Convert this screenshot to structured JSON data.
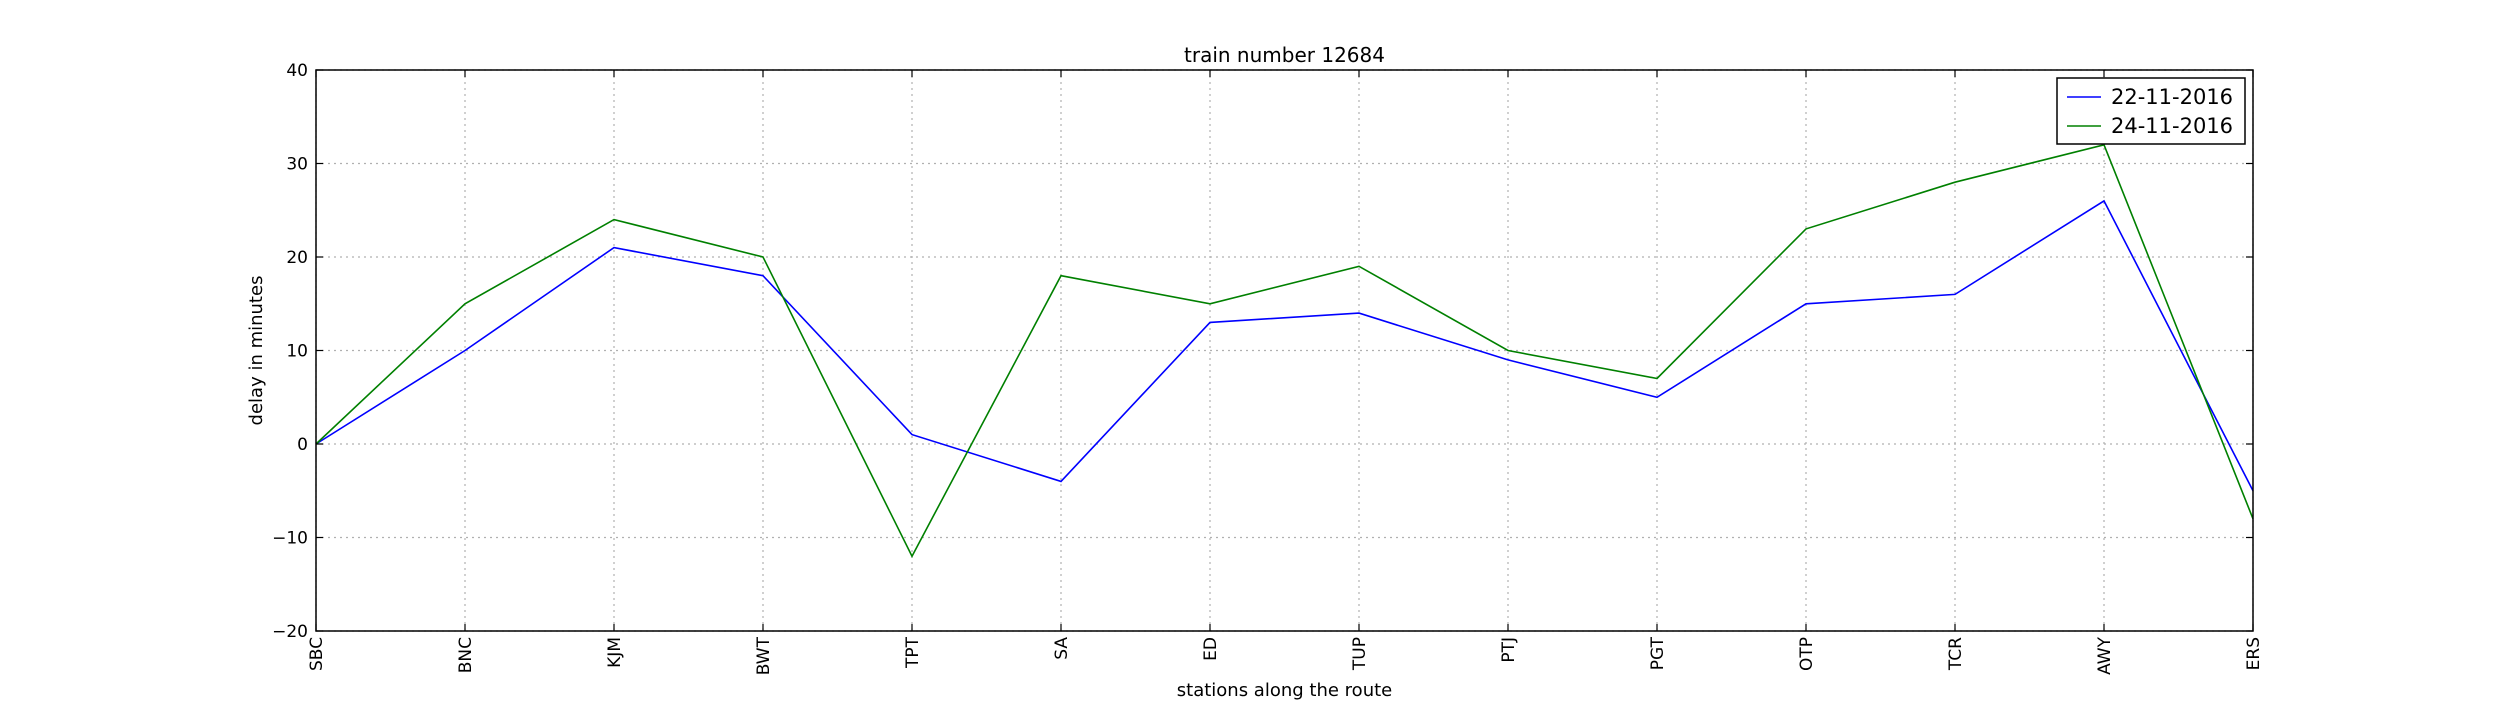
{
  "chart_data": {
    "type": "line",
    "title": "train number 12684",
    "xlabel": "stations along the route",
    "ylabel": "delay in minutes",
    "categories": [
      "SBC",
      "BNC",
      "KJM",
      "BWT",
      "TPT",
      "SA",
      "ED",
      "TUP",
      "PTJ",
      "PGT",
      "OTP",
      "TCR",
      "AWY",
      "ERS"
    ],
    "ylim": [
      -20,
      40
    ],
    "yticks": [
      -20,
      -10,
      0,
      10,
      20,
      30,
      40
    ],
    "ytick_labels": [
      "−20",
      "−10",
      "0",
      "10",
      "20",
      "30",
      "40"
    ],
    "grid": true,
    "legend_position": "top-right",
    "series": [
      {
        "name": "22-11-2016",
        "color": "#0000ff",
        "values": [
          0,
          10,
          21,
          18,
          1,
          -4,
          13,
          14,
          9,
          5,
          15,
          16,
          26,
          -5
        ]
      },
      {
        "name": "24-11-2016",
        "color": "#008000",
        "values": [
          0,
          15,
          24,
          20,
          -12,
          18,
          15,
          19,
          10,
          7,
          23,
          28,
          32,
          -8
        ]
      }
    ]
  }
}
